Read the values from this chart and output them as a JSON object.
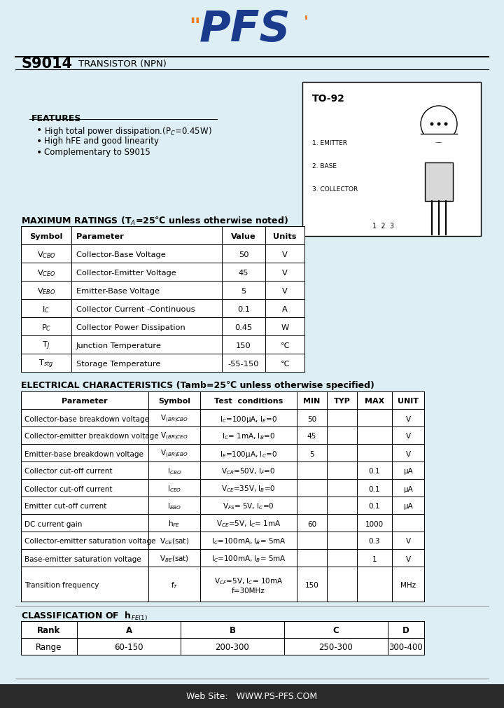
{
  "bg_color": "#ddeef5",
  "title_part": "S9014",
  "title_type": "TRANSISTOR (NPN)",
  "features": [
    "High total power dissipation.(P$_C$=0.45W)",
    "High hFE and good linearity",
    "Complementary to S9015"
  ],
  "mr_title": "MAXIMUM RATINGS (T$_A$=25℃ unless otherwise noted)",
  "mr_headers": [
    "Symbol",
    "Parameter",
    "Value",
    "Units"
  ],
  "mr_rows": [
    [
      "V$_{CBO}$",
      "Collector-Base Voltage",
      "50",
      "V"
    ],
    [
      "V$_{CEO}$",
      "Collector-Emitter Voltage",
      "45",
      "V"
    ],
    [
      "V$_{EBO}$",
      "Emitter-Base Voltage",
      "5",
      "V"
    ],
    [
      "I$_C$",
      "Collector Current -Continuous",
      "0.1",
      "A"
    ],
    [
      "P$_C$",
      "Collector Power Dissipation",
      "0.45",
      "W"
    ],
    [
      "T$_J$",
      "Junction Temperature",
      "150",
      "℃"
    ],
    [
      "T$_{stg}$",
      "Storage Temperature",
      "-55-150",
      "℃"
    ]
  ],
  "ec_title": "ELECTRICAL CHARACTERISTICS (Tamb=25℃ unless otherwise specified)",
  "ec_headers": [
    "Parameter",
    "Symbol",
    "Test  conditions",
    "MIN",
    "TYP",
    "MAX",
    "UNIT"
  ],
  "ec_rows": [
    [
      "Collector-base breakdown voltage",
      "V$_{(BR)CBO}$",
      "I$_C$=100μA, I$_E$=0",
      "50",
      "",
      "",
      "V"
    ],
    [
      "Collector-emitter breakdown voltage",
      "V$_{(BR)CEO}$",
      "I$_C$= 1mA, I$_B$=0",
      "45",
      "",
      "",
      "V"
    ],
    [
      "Emitter-base breakdown voltage",
      "V$_{(BR)EBO}$",
      "I$_E$=100μA, I$_C$=0",
      "5",
      "",
      "",
      "V"
    ],
    [
      "Collector cut-off current",
      "I$_{CBO}$",
      "V$_{CR}$=50V, I$_F$=0",
      "",
      "",
      "0.1",
      "μA"
    ],
    [
      "Collector cut-off current",
      "I$_{CEO}$",
      "V$_{CE}$=35V, I$_B$=0",
      "",
      "",
      "0.1",
      "μA"
    ],
    [
      "Emitter cut-off current",
      "I$_{EBO}$",
      "V$_{FS}$= 5V, I$_C$=0",
      "",
      "",
      "0.1",
      "μA"
    ],
    [
      "DC current gain",
      "h$_{FE}$",
      "V$_{CE}$=5V, I$_C$= 1mA",
      "60",
      "",
      "1000",
      ""
    ],
    [
      "Collector-emitter saturation voltage",
      "V$_{CE}$(sat)",
      "I$_C$=100mA, I$_B$= 5mA",
      "",
      "",
      "0.3",
      "V"
    ],
    [
      "Base-emitter saturation voltage",
      "V$_{BE}$(sat)",
      "I$_C$=100mA, I$_B$= 5mA",
      "",
      "",
      "1",
      "V"
    ],
    [
      "Transition frequency",
      "f$_T$",
      "V$_{CF}$=5V, I$_C$= 10mA\nf=30MHz",
      "150",
      "",
      "",
      "MHz"
    ]
  ],
  "cl_title": "CLASSIFICATION OF  h$_{FE(1)}$",
  "cl_headers": [
    "Rank",
    "A",
    "B",
    "C",
    "D"
  ],
  "cl_data": [
    "Range",
    "60-150",
    "200-300",
    "250-300",
    "300-400"
  ],
  "website": "Web Site:   WWW.PS-PFS.COM",
  "pfs_blue": "#1a3a8c",
  "pfs_orange": "#F07820",
  "footer_bg": "#2a2a2a"
}
